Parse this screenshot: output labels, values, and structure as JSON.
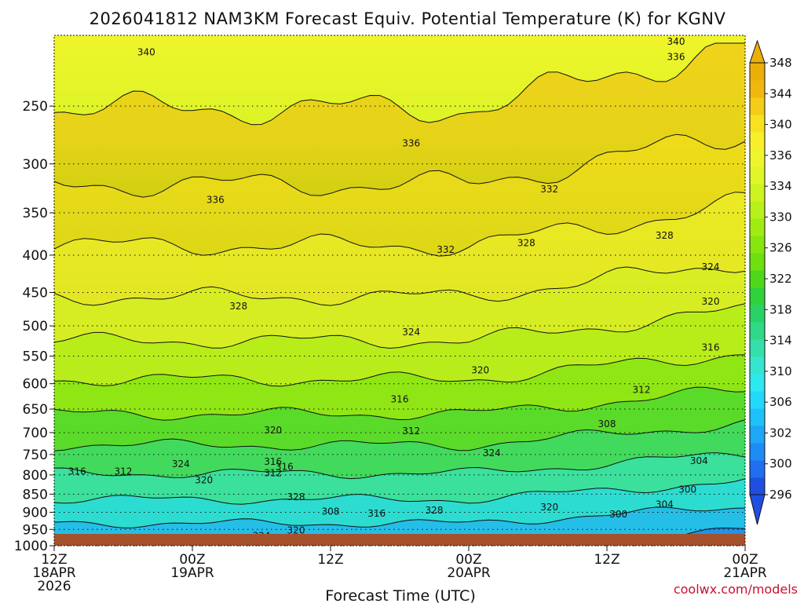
{
  "chart_data": {
    "type": "contour",
    "title": "2026041812 NAM3KM Forecast Equiv. Potential Temperature (K) for KGNV",
    "xlabel": "Forecast Time (UTC)",
    "ylabel": "",
    "units": "K",
    "x_range": [
      "2026-04-18 12Z",
      "2026-04-21 00Z"
    ],
    "x_ticks": [
      {
        "time": "2026-04-18 12Z",
        "label": [
          "12Z",
          "18APR",
          "2026"
        ]
      },
      {
        "time": "2026-04-19 00Z",
        "label": [
          "00Z",
          "19APR"
        ]
      },
      {
        "time": "2026-04-19 12Z",
        "label": [
          "12Z"
        ]
      },
      {
        "time": "2026-04-20 00Z",
        "label": [
          "00Z",
          "20APR"
        ]
      },
      {
        "time": "2026-04-20 12Z",
        "label": [
          "12Z"
        ]
      },
      {
        "time": "2026-04-21 00Z",
        "label": [
          "00Z",
          "21APR"
        ]
      }
    ],
    "y_axis": {
      "scale": "log",
      "reversed": true,
      "range_hPa": [
        1000,
        200
      ],
      "ticks": [
        250,
        300,
        350,
        400,
        450,
        500,
        550,
        600,
        650,
        700,
        750,
        800,
        850,
        900,
        950,
        1000
      ]
    },
    "colorbar": {
      "levels": [
        296,
        298,
        300,
        302,
        304,
        306,
        308,
        310,
        312,
        314,
        316,
        318,
        320,
        322,
        324,
        326,
        328,
        330,
        332,
        334,
        336,
        338,
        340,
        342,
        344,
        346,
        348
      ],
      "tick_labels": [
        296,
        300,
        302,
        306,
        310,
        314,
        318,
        322,
        326,
        330,
        334,
        336,
        340,
        344,
        348
      ],
      "colors": [
        "#1f4fe0",
        "#1f6ff0",
        "#1e8cf5",
        "#1ea6f7",
        "#1ec0fa",
        "#22d8fb",
        "#2ee8f0",
        "#35e6cf",
        "#35dfaa",
        "#2fd987",
        "#2ad265",
        "#30d23a",
        "#4fd81a",
        "#6de00e",
        "#86e60d",
        "#a0ec12",
        "#b8f01a",
        "#cdf322",
        "#dff52a",
        "#eef52e",
        "#f7ef2c",
        "#f8e11f",
        "#f5cc16",
        "#f0b80f",
        "#ebb008"
      ],
      "extend": "both"
    },
    "contour_labels": [
      {
        "value": 340,
        "x": "2026-04-18 20Z",
        "p": 211
      },
      {
        "value": 340,
        "x": "2026-04-20 18Z",
        "p": 204
      },
      {
        "value": 336,
        "x": "2026-04-20 18Z",
        "p": 214
      },
      {
        "value": 336,
        "x": "2026-04-19 19Z",
        "p": 281
      },
      {
        "value": 336,
        "x": "2026-04-19 02Z",
        "p": 336
      },
      {
        "value": 332,
        "x": "2026-04-20 07Z",
        "p": 325
      },
      {
        "value": 332,
        "x": "2026-04-19 22Z",
        "p": 393
      },
      {
        "value": 328,
        "x": "2026-04-20 05Z",
        "p": 385
      },
      {
        "value": 328,
        "x": "2026-04-20 17Z",
        "p": 376
      },
      {
        "value": 328,
        "x": "2026-04-19 04Z",
        "p": 470
      },
      {
        "value": 324,
        "x": "2026-04-20 21Z",
        "p": 415
      },
      {
        "value": 324,
        "x": "2026-04-19 19Z",
        "p": 510
      },
      {
        "value": 320,
        "x": "2026-04-20 21Z",
        "p": 463
      },
      {
        "value": 320,
        "x": "2026-04-20 01Z",
        "p": 575
      },
      {
        "value": 320,
        "x": "2026-04-19 07Z",
        "p": 695
      },
      {
        "value": 316,
        "x": "2026-04-20 21Z",
        "p": 535
      },
      {
        "value": 316,
        "x": "2026-04-19 18Z",
        "p": 630
      },
      {
        "value": 316,
        "x": "2026-04-18 14Z",
        "p": 791
      },
      {
        "value": 316,
        "x": "2026-04-19 07Z",
        "p": 767
      },
      {
        "value": 316,
        "x": "2026-04-19 08Z",
        "p": 780
      },
      {
        "value": 316,
        "x": "2026-04-19 16Z",
        "p": 903
      },
      {
        "value": 312,
        "x": "2026-04-18 18Z",
        "p": 791
      },
      {
        "value": 312,
        "x": "2026-04-19 07Z",
        "p": 795
      },
      {
        "value": 312,
        "x": "2026-04-19 19Z",
        "p": 697
      },
      {
        "value": 312,
        "x": "2026-04-20 15Z",
        "p": 612
      },
      {
        "value": 324,
        "x": "2026-04-18 23Z",
        "p": 773
      },
      {
        "value": 324,
        "x": "2026-04-20 02Z",
        "p": 747
      },
      {
        "value": 324,
        "x": "2026-04-19 06Z",
        "p": 969
      },
      {
        "value": 320,
        "x": "2026-04-19 01Z",
        "p": 813
      },
      {
        "value": 320,
        "x": "2026-04-19 09Z",
        "p": 953
      },
      {
        "value": 320,
        "x": "2026-04-20 07Z",
        "p": 886
      },
      {
        "value": 328,
        "x": "2026-04-19 09Z",
        "p": 858
      },
      {
        "value": 328,
        "x": "2026-04-19 21Z",
        "p": 895
      },
      {
        "value": 308,
        "x": "2026-04-19 12Z",
        "p": 898
      },
      {
        "value": 308,
        "x": "2026-04-20 12Z",
        "p": 681
      },
      {
        "value": 304,
        "x": "2026-04-20 20Z",
        "p": 765
      },
      {
        "value": 304,
        "x": "2026-04-20 17Z",
        "p": 878
      },
      {
        "value": 300,
        "x": "2026-04-20 19Z",
        "p": 838
      },
      {
        "value": 300,
        "x": "2026-04-20 13Z",
        "p": 906
      }
    ]
  },
  "credit": "coolwx.com/models"
}
